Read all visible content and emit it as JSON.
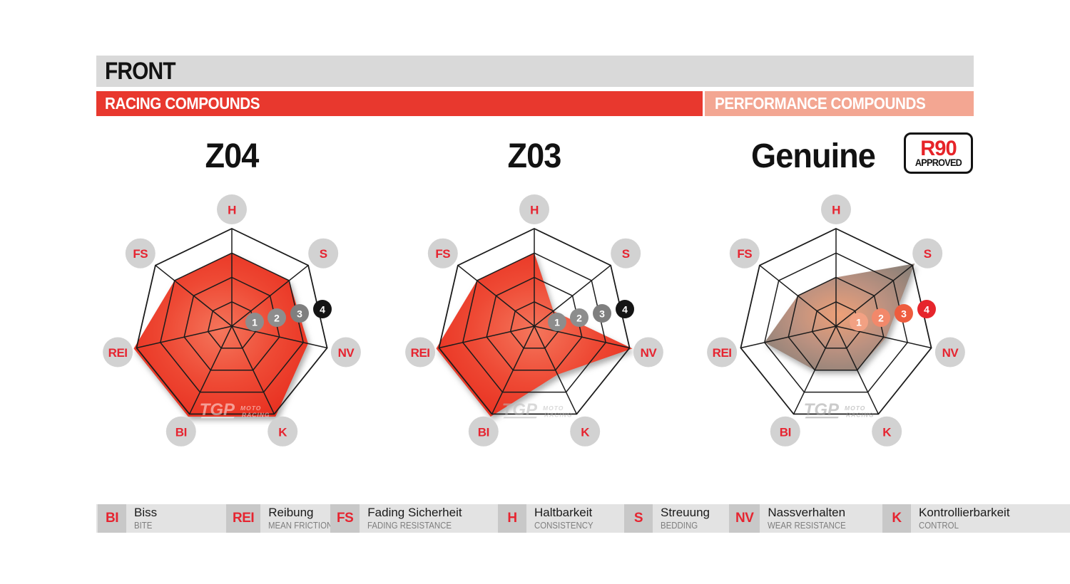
{
  "header": {
    "title": "FRONT",
    "left_tab": "RACING COMPOUNDS",
    "right_tab": "PERFORMANCE COMPOUNDS"
  },
  "r90_badge": {
    "title": "R90",
    "subtitle": "APPROVED"
  },
  "watermark": {
    "logo": "TGP",
    "line1": "MOTO",
    "line2": "RACING"
  },
  "scale_labels": [
    "1",
    "2",
    "3",
    "4"
  ],
  "colors": {
    "accent_red": "#e8382e",
    "salmon": "#f3a692",
    "header_gray": "#d9d9d9",
    "legend_bg": "#e3e3e3",
    "legend_box": "#c8c8c8",
    "label_circle": "#d2d2d2",
    "label_text": "#e62430",
    "grid": "#1c1c1c"
  },
  "chart_data": [
    {
      "type": "radar",
      "title": "Z04",
      "group": "RACING COMPOUNDS",
      "axes": [
        "H",
        "S",
        "NV",
        "K",
        "BI",
        "REI",
        "FS"
      ],
      "values": [
        3,
        3,
        3.2,
        4,
        4,
        4,
        3
      ],
      "scale_min": 0,
      "scale_max": 4,
      "rings": [
        1,
        2,
        3,
        4
      ],
      "fill_gradient": [
        "#f4765c",
        "#ee4934",
        "#e72d1e"
      ],
      "badge_colors": [
        "#8d8d8d",
        "#8d8d8d",
        "#7f7f7f",
        "#141414"
      ],
      "watermark_color": "rgba(255,255,255,0.5)"
    },
    {
      "type": "radar",
      "title": "Z03",
      "group": "RACING COMPOUNDS",
      "axes": [
        "H",
        "S",
        "NV",
        "K",
        "BI",
        "REI",
        "FS"
      ],
      "values": [
        3,
        1,
        4,
        2.2,
        4,
        4,
        3
      ],
      "scale_min": 0,
      "scale_max": 4,
      "rings": [
        1,
        2,
        3,
        4
      ],
      "fill_gradient": [
        "#f4765c",
        "#ee4934",
        "#e72d1e"
      ],
      "badge_colors": [
        "#8d8d8d",
        "#8d8d8d",
        "#7f7f7f",
        "#141414"
      ],
      "watermark_color": "rgba(185,185,185,0.55)"
    },
    {
      "type": "radar",
      "title": "Genuine",
      "group": "PERFORMANCE COMPOUNDS",
      "axes": [
        "H",
        "S",
        "NV",
        "K",
        "BI",
        "REI",
        "FS"
      ],
      "values": [
        2,
        4,
        2.1,
        2,
        2,
        3,
        2
      ],
      "scale_min": 0,
      "scale_max": 4,
      "rings": [
        1,
        2,
        3,
        4
      ],
      "fill_gradient": [
        "#eda078",
        "#bb9180",
        "#8d8178"
      ],
      "badge_colors": [
        "#f2a183",
        "#f2886a",
        "#ee5c3e",
        "#e6252c"
      ],
      "watermark_color": "rgba(160,160,160,0.55)"
    }
  ],
  "legend": {
    "items": [
      {
        "abbr": "BI",
        "de": "Biss",
        "en": "BITE"
      },
      {
        "abbr": "REI",
        "de": "Reibung",
        "en": "MEAN FRICTION"
      },
      {
        "abbr": "FS",
        "de": "Fading Sicherheit",
        "en": "FADING RESISTANCE"
      },
      {
        "abbr": "H",
        "de": "Haltbarkeit",
        "en": "CONSISTENCY"
      },
      {
        "abbr": "S",
        "de": "Streuung",
        "en": "BEDDING"
      },
      {
        "abbr": "NV",
        "de": "Nassverhalten",
        "en": "WEAR RESISTANCE"
      },
      {
        "abbr": "K",
        "de": "Kontrollierbarkeit",
        "en": "CONTROL"
      }
    ]
  }
}
